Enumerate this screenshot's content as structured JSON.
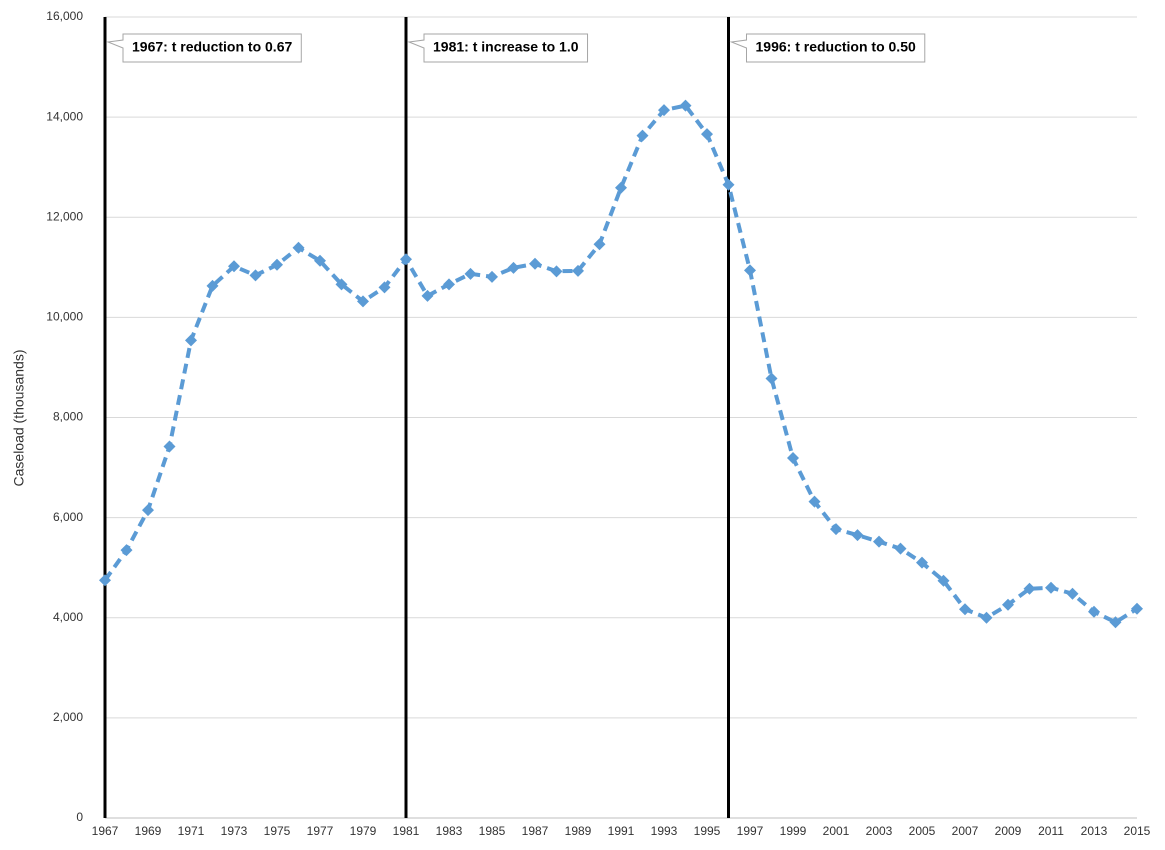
{
  "chart_data": {
    "type": "line",
    "y_label": "Caseload (thousands)",
    "x": [
      1967,
      1968,
      1969,
      1970,
      1971,
      1972,
      1973,
      1974,
      1975,
      1976,
      1977,
      1978,
      1979,
      1980,
      1981,
      1982,
      1983,
      1984,
      1985,
      1986,
      1987,
      1988,
      1989,
      1990,
      1991,
      1992,
      1993,
      1994,
      1995,
      1996,
      1997,
      1998,
      1999,
      2000,
      2001,
      2002,
      2003,
      2004,
      2005,
      2006,
      2007,
      2008,
      2009,
      2010,
      2011,
      2012,
      2013,
      2014,
      2015
    ],
    "series": [
      {
        "color": "#5b9bd5",
        "values": [
          4750,
          5350,
          6150,
          7420,
          9540,
          10630,
          11020,
          10840,
          11050,
          11390,
          11130,
          10660,
          10320,
          10600,
          11160,
          10430,
          10660,
          10870,
          10810,
          10990,
          11070,
          10920,
          10930,
          11460,
          12590,
          13630,
          14140,
          14230,
          13660,
          12650,
          10940,
          8780,
          7190,
          6320,
          5770,
          5650,
          5520,
          5380,
          5100,
          4740,
          4170,
          4000,
          4260,
          4580,
          4600,
          4480,
          4120,
          3910,
          4180
        ]
      }
    ],
    "xlim": [
      1967,
      2015
    ],
    "xticks": [
      1967,
      1969,
      1971,
      1973,
      1975,
      1977,
      1979,
      1981,
      1983,
      1985,
      1987,
      1989,
      1991,
      1993,
      1995,
      1997,
      1999,
      2001,
      2003,
      2005,
      2007,
      2009,
      2011,
      2013,
      2015
    ],
    "ylim": [
      0,
      16000
    ],
    "yticks": [
      0,
      {
        "value": 2000,
        "label": "2,000"
      },
      {
        "value": 4000,
        "label": "4,000"
      },
      {
        "value": 6000,
        "label": "6,000"
      },
      {
        "value": 8000,
        "label": "8,000"
      },
      {
        "value": 10000,
        "label": "10,000"
      },
      {
        "value": 12000,
        "label": "12,000"
      },
      {
        "value": 14000,
        "label": "14,000"
      },
      {
        "value": 16000,
        "label": "16,000"
      }
    ],
    "grid": true,
    "annotations": [
      {
        "x": 1967,
        "text": "1967: t reduction to 0.67"
      },
      {
        "x": 1981,
        "text": "1981: t increase to 1.0"
      },
      {
        "x": 1996,
        "text": "1996: t reduction to 0.50"
      }
    ]
  }
}
